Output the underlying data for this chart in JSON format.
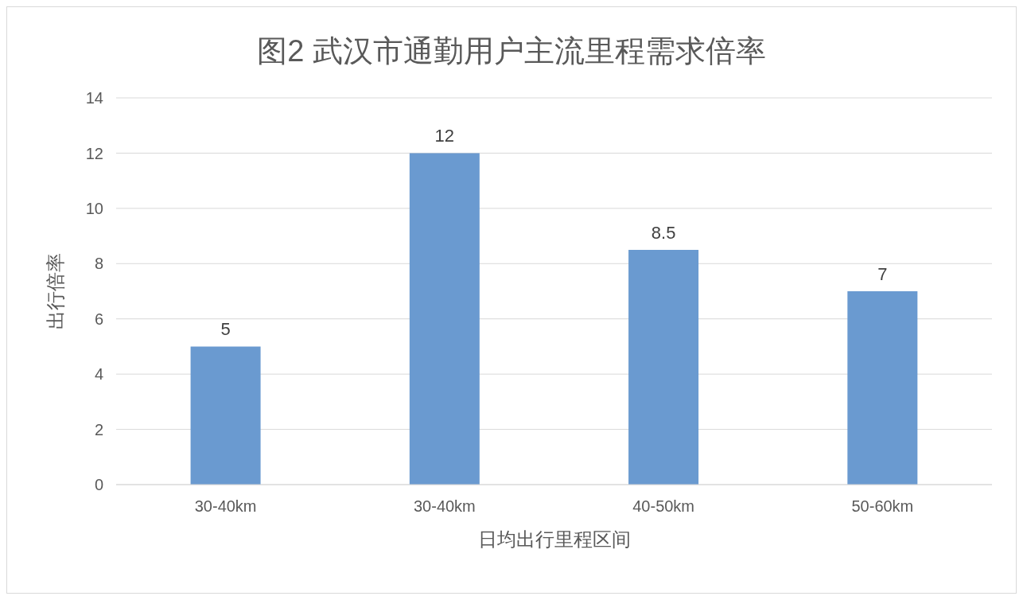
{
  "chart_data": {
    "type": "bar",
    "title": "图2 武汉市通勤用户主流里程需求倍率",
    "xlabel": "日均出行里程区间",
    "ylabel": "出行倍率",
    "categories": [
      "30-40km",
      "30-40km",
      "40-50km",
      "50-60km"
    ],
    "values": [
      5,
      12,
      8.5,
      7
    ],
    "color": "#6a9ad0",
    "ylim": [
      0,
      14
    ],
    "yticks": [
      0,
      2,
      4,
      6,
      8,
      10,
      12,
      14
    ],
    "grid": "y",
    "data_labels": true,
    "legend": false
  }
}
